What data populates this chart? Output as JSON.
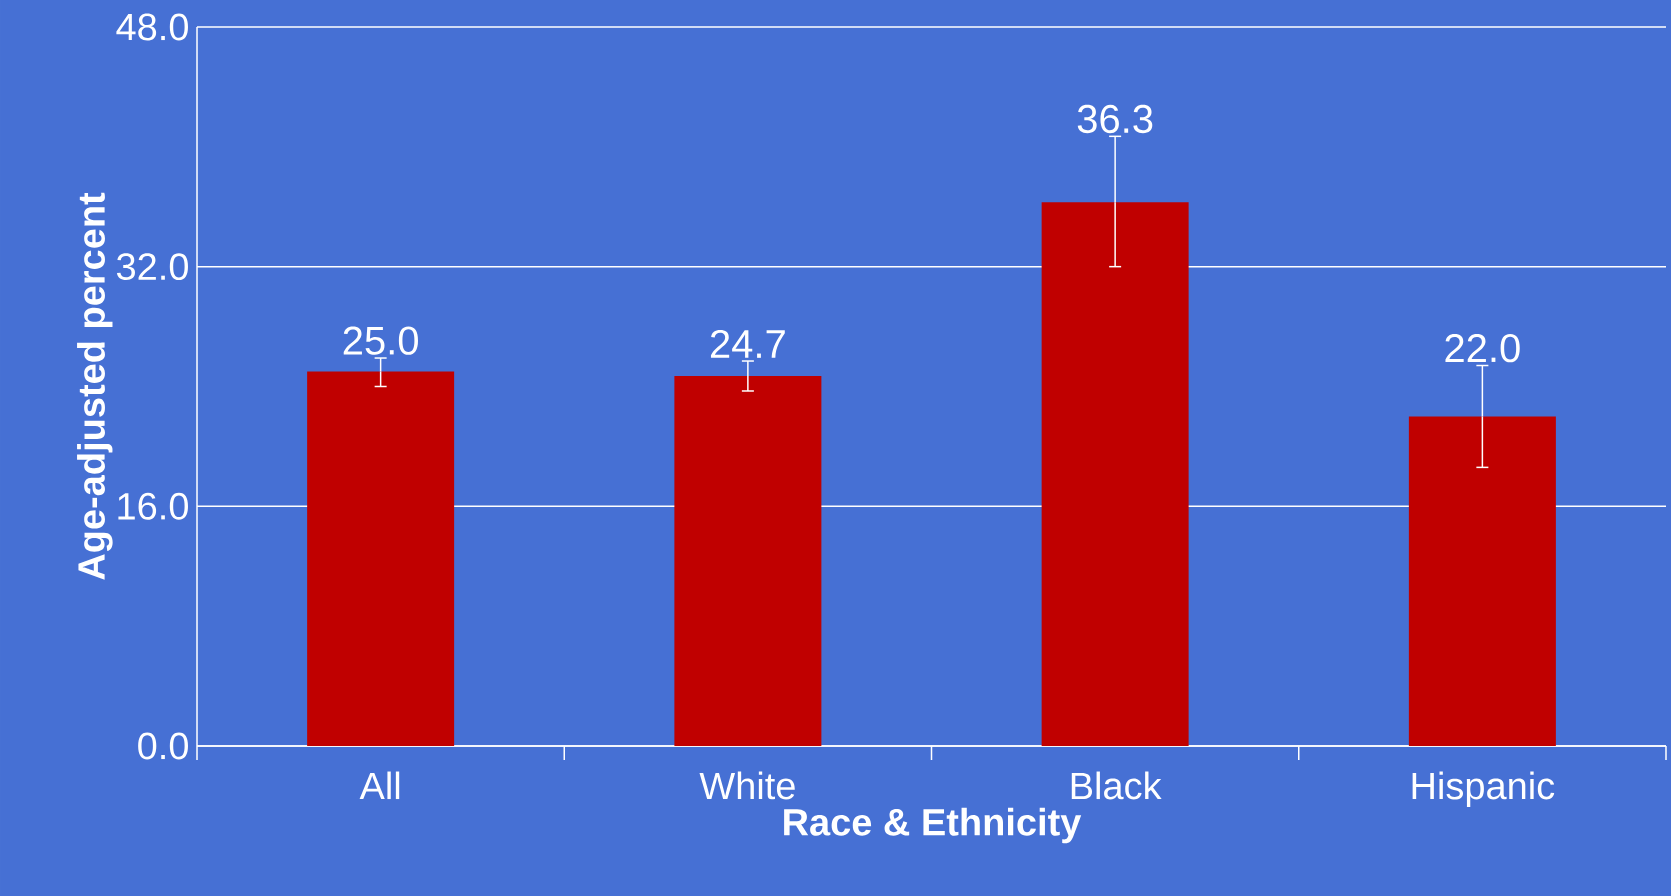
{
  "chart_data": {
    "type": "bar",
    "xlabel": "Race & Ethnicity",
    "ylabel": "Age-adjusted percent",
    "categories": [
      "All",
      "White",
      "Black",
      "Hispanic"
    ],
    "values": [
      25.0,
      24.7,
      36.3,
      22.0
    ],
    "errors": [
      [
        24.0,
        25.9
      ],
      [
        23.7,
        25.7
      ],
      [
        32.0,
        40.7
      ],
      [
        18.6,
        25.4
      ]
    ],
    "value_labels": [
      "25.0",
      "24.7",
      "36.3",
      "22.0"
    ],
    "color": "#c00000",
    "ylim": [
      0,
      48
    ],
    "yticks": [
      {
        "value": 0,
        "label": "0.0"
      },
      {
        "value": 16,
        "label": "16.0"
      },
      {
        "value": 32,
        "label": "32.0"
      },
      {
        "value": 48,
        "label": "48.0"
      }
    ],
    "grid": "y"
  }
}
